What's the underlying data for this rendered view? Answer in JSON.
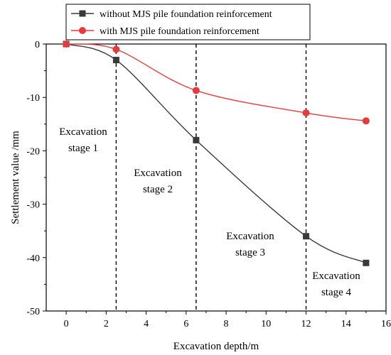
{
  "chart_data": {
    "type": "line",
    "xlabel": "Excavation depth/m",
    "ylabel": "Settlement value /mm",
    "xlim": [
      -1,
      16
    ],
    "ylim": [
      -50,
      0
    ],
    "xticks": [
      0,
      2,
      4,
      6,
      8,
      10,
      12,
      14,
      16
    ],
    "yticks": [
      0,
      -10,
      -20,
      -30,
      -40,
      -50
    ],
    "grid": false,
    "legend_position": "top-left",
    "series": [
      {
        "name": "without MJS pile foundation reinforcement",
        "marker": "square",
        "color": "#3a3a3a",
        "x": [
          0,
          2.5,
          6.5,
          12,
          15
        ],
        "y": [
          0,
          -3,
          -18,
          -36,
          -41
        ]
      },
      {
        "name": "with MJS pile foundation reinforcement",
        "marker": "circle",
        "color": "#e8393d",
        "x": [
          0,
          2.5,
          6.5,
          12,
          15
        ],
        "y": [
          0,
          -1,
          -8.7,
          -12.9,
          -14.4
        ]
      }
    ],
    "stage_lines_x": [
      2.5,
      6.5,
      12
    ],
    "annotations": [
      {
        "lines": [
          "Excavation",
          "stage 1"
        ]
      },
      {
        "lines": [
          "Excavation",
          "stage 2"
        ]
      },
      {
        "lines": [
          "Excavation",
          "stage 3"
        ]
      },
      {
        "lines": [
          "Excavation",
          "stage 4"
        ]
      }
    ]
  }
}
